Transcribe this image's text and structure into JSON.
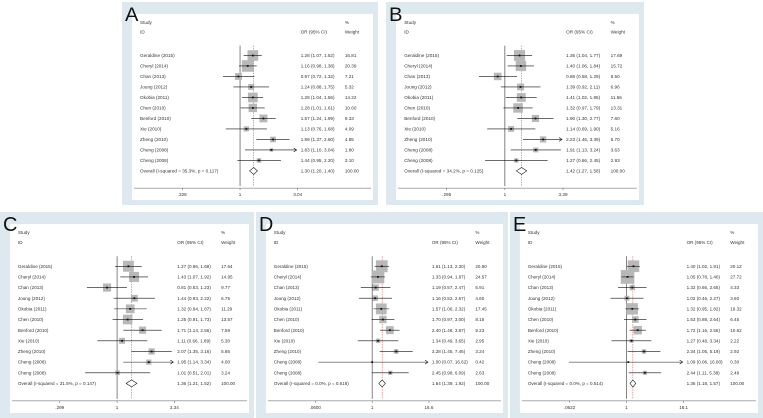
{
  "headers": {
    "study": "Study",
    "id": "ID",
    "or": "OR (95% CI)",
    "pct": "%",
    "weight": "Weight"
  },
  "colors": {
    "panel_bg": "#dde9ee",
    "box": "#b8b8b8",
    "line": "#111111",
    "null_line": "#333333",
    "overall_line": "#d04040"
  },
  "chart_data": [
    {
      "type": "forest",
      "panel": "A",
      "axis_ticks": [
        ".328",
        "1",
        "3.04"
      ],
      "xlim": [
        0.328,
        3.04
      ],
      "scale": "log",
      "overall": {
        "label": "Overall  (I-squared = 35.3%, p = 0.117)",
        "or": 1.3,
        "lo": 1.2,
        "hi": 1.4,
        "or_ci": "1.30 (1.20, 1.40)",
        "weight": "100.00"
      },
      "studies": [
        {
          "name": "Geraldine (2015)",
          "or": 1.28,
          "lo": 1.07,
          "hi": 1.52,
          "or_ci": "1.28 (1.07, 1.52)",
          "weight": "16.81"
        },
        {
          "name": "Cheryl (2014)",
          "or": 1.16,
          "lo": 0.98,
          "hi": 1.38,
          "or_ci": "1.16 (0.98, 1.38)",
          "weight": "20.39"
        },
        {
          "name": "Chan (2013)",
          "or": 0.97,
          "lo": 0.72,
          "hi": 1.32,
          "or_ci": "0.97 (0.72, 1.32)",
          "weight": "7.21"
        },
        {
          "name": "Joung (2012)",
          "or": 1.24,
          "lo": 0.88,
          "hi": 1.75,
          "or_ci": "1.24 (0.88, 1.75)",
          "weight": "5.32"
        },
        {
          "name": "Okobia (2011)",
          "or": 1.28,
          "lo": 1.04,
          "hi": 1.56,
          "or_ci": "1.28 (1.04, 1.56)",
          "weight": "14.22"
        },
        {
          "name": "Chen (2010)",
          "or": 1.28,
          "lo": 1.01,
          "hi": 1.61,
          "or_ci": "1.28 (1.01, 1.61)",
          "weight": "10.60"
        },
        {
          "name": "Benford (2010)",
          "or": 1.57,
          "lo": 1.24,
          "hi": 1.99,
          "or_ci": "1.57 (1.24, 1.99)",
          "weight": "9.33"
        },
        {
          "name": "Xie (2010)",
          "or": 1.13,
          "lo": 0.76,
          "hi": 1.68,
          "or_ci": "1.13 (0.76, 1.68)",
          "weight": "4.09"
        },
        {
          "name": "Zheng (2010)",
          "or": 1.89,
          "lo": 1.37,
          "hi": 2.6,
          "or_ci": "1.89 (1.37, 2.60)",
          "weight": "4.85"
        },
        {
          "name": "Cheng (2008)",
          "or": 1.83,
          "lo": 1.1,
          "hi": 3.04,
          "or_ci": "1.83 (1.10, 3.04)",
          "weight": "1.80"
        },
        {
          "name": "Cheng (2008)",
          "or": 1.44,
          "lo": 0.95,
          "hi": 2.2,
          "or_ci": "1.44 (0.95, 2.20)",
          "weight": "3.10"
        }
      ]
    },
    {
      "type": "forest",
      "panel": "B",
      "axis_ticks": [
        ".295",
        "1",
        "3.39"
      ],
      "xlim": [
        0.295,
        3.39
      ],
      "scale": "log",
      "overall": {
        "label": "Overall  (I-squared = 34.2%, p = 0.125)",
        "or": 1.42,
        "lo": 1.27,
        "hi": 1.58,
        "or_ci": "1.42 (1.27, 1.58)",
        "weight": "100.00"
      },
      "studies": [
        {
          "name": "Geraldine (2015)",
          "or": 1.36,
          "lo": 1.04,
          "hi": 1.77,
          "or_ci": "1.36 (1.04, 1.77)",
          "weight": "17.69"
        },
        {
          "name": "Cheryl (2014)",
          "or": 1.4,
          "lo": 1.06,
          "hi": 1.84,
          "or_ci": "1.40 (1.06, 1.84)",
          "weight": "15.72"
        },
        {
          "name": "Chan (2013)",
          "or": 0.86,
          "lo": 0.58,
          "hi": 1.29,
          "or_ci": "0.86 (0.58, 1.29)",
          "weight": "8.50"
        },
        {
          "name": "Joung (2012)",
          "or": 1.39,
          "lo": 0.92,
          "hi": 2.11,
          "or_ci": "1.39 (0.92, 2.11)",
          "weight": "6.96"
        },
        {
          "name": "Okobia (2011)",
          "or": 1.41,
          "lo": 1.02,
          "hi": 1.95,
          "or_ci": "1.41 (1.02, 1.95)",
          "weight": "11.56"
        },
        {
          "name": "Chen (2010)",
          "or": 1.32,
          "lo": 0.97,
          "hi": 1.79,
          "or_ci": "1.32 (0.97, 1.79)",
          "weight": "13.31"
        },
        {
          "name": "Benford (2010)",
          "or": 1.9,
          "lo": 1.3,
          "hi": 2.77,
          "or_ci": "1.90 (1.30, 2.77)",
          "weight": "7.60"
        },
        {
          "name": "Xie (2010)",
          "or": 1.14,
          "lo": 0.69,
          "hi": 1.9,
          "or_ci": "1.14 (0.69, 1.90)",
          "weight": "5.16"
        },
        {
          "name": "Zheng (2010)",
          "or": 2.23,
          "lo": 1.46,
          "hi": 3.39,
          "or_ci": "2.23 (1.46, 3.39)",
          "weight": "5.70"
        },
        {
          "name": "Cheng (2008)",
          "or": 1.91,
          "lo": 1.13,
          "hi": 3.24,
          "or_ci": "1.91 (1.13, 3.24)",
          "weight": "3.63"
        },
        {
          "name": "Cheng (2008)",
          "or": 1.27,
          "lo": 0.66,
          "hi": 2.45,
          "or_ci": "1.27 (0.66, 2.45)",
          "weight": "2.93"
        }
      ]
    },
    {
      "type": "forest",
      "panel": "C",
      "axis_ticks": [
        ".299",
        "1",
        "3.34"
      ],
      "xlim": [
        0.299,
        3.34
      ],
      "scale": "log",
      "overall": {
        "label": "Overall  (I-squared = 31.5%, p = 0.147)",
        "or": 1.36,
        "lo": 1.21,
        "hi": 1.52,
        "or_ci": "1.36 (1.21, 1.52)",
        "weight": "100.00"
      },
      "studies": [
        {
          "name": "Geraldine (2015)",
          "or": 1.27,
          "lo": 0.96,
          "hi": 1.68,
          "or_ci": "1.27 (0.96, 1.68)",
          "weight": "17.64"
        },
        {
          "name": "Cheryl (2014)",
          "or": 1.43,
          "lo": 1.07,
          "hi": 1.92,
          "or_ci": "1.43 (1.07, 1.92)",
          "weight": "14.95"
        },
        {
          "name": "Chan (2013)",
          "or": 0.81,
          "lo": 0.53,
          "hi": 1.23,
          "or_ci": "0.81 (0.53, 1.23)",
          "weight": "9.77"
        },
        {
          "name": "Joung (2012)",
          "or": 1.44,
          "lo": 0.93,
          "hi": 2.22,
          "or_ci": "1.44 (0.93, 2.22)",
          "weight": "6.75"
        },
        {
          "name": "Okobia (2011)",
          "or": 1.32,
          "lo": 0.94,
          "hi": 1.87,
          "or_ci": "1.32 (0.94, 1.87)",
          "weight": "11.29"
        },
        {
          "name": "Chen (2010)",
          "or": 1.25,
          "lo": 0.91,
          "hi": 1.73,
          "or_ci": "1.25 (0.91, 1.73)",
          "weight": "13.57"
        },
        {
          "name": "Benford (2010)",
          "or": 1.71,
          "lo": 1.14,
          "hi": 2.56,
          "or_ci": "1.71 (1.14, 2.56)",
          "weight": "7.59"
        },
        {
          "name": "Xie (2010)",
          "or": 1.11,
          "lo": 0.66,
          "hi": 1.89,
          "or_ci": "1.11 (0.66, 1.89)",
          "weight": "5.30"
        },
        {
          "name": "Zheng (2010)",
          "or": 2.07,
          "lo": 1.35,
          "hi": 3.16,
          "or_ci": "2.07 (1.35, 3.16)",
          "weight": "5.86"
        },
        {
          "name": "Cheng (2008)",
          "or": 1.95,
          "lo": 1.14,
          "hi": 3.34,
          "or_ci": "1.95 (1.14, 3.34)",
          "weight": "4.00"
        },
        {
          "name": "Cheng (2008)",
          "or": 1.01,
          "lo": 0.51,
          "hi": 2.01,
          "or_ci": "1.01 (0.51, 2.01)",
          "weight": "3.24"
        }
      ]
    },
    {
      "type": "forest",
      "panel": "D",
      "axis_ticks": [
        ".0600",
        "1",
        "16.6"
      ],
      "xlim": [
        0.06,
        16.6
      ],
      "scale": "log",
      "overall": {
        "label": "Overall  (I-squared = 0.0%, p = 0.618)",
        "or": 1.64,
        "lo": 1.39,
        "hi": 1.92,
        "or_ci": "1.64 (1.39, 1.92)",
        "weight": "100.00"
      },
      "studies": [
        {
          "name": "Geraldine (2015)",
          "or": 1.61,
          "lo": 1.13,
          "hi": 2.3,
          "or_ci": "1.61 (1.13, 2.30)",
          "weight": "20.90"
        },
        {
          "name": "Cheryl (2014)",
          "or": 1.33,
          "lo": 0.94,
          "hi": 1.87,
          "or_ci": "1.33 (0.94, 1.87)",
          "weight": "24.57"
        },
        {
          "name": "Chan (2013)",
          "or": 1.19,
          "lo": 0.57,
          "hi": 2.47,
          "or_ci": "1.19 (0.57, 2.47)",
          "weight": "5.91"
        },
        {
          "name": "Joung (2012)",
          "or": 1.16,
          "lo": 0.52,
          "hi": 2.67,
          "or_ci": "1.16 (0.52, 2.67)",
          "weight": "4.60"
        },
        {
          "name": "Okobia (2011)",
          "or": 1.57,
          "lo": 1.06,
          "hi": 2.32,
          "or_ci": "1.57 (1.06, 2.32)",
          "weight": "17.45"
        },
        {
          "name": "Chen (2010)",
          "or": 1.7,
          "lo": 0.97,
          "hi": 3.0,
          "or_ci": "1.70 (0.97, 3.00)",
          "weight": "8.15"
        },
        {
          "name": "Benford (2010)",
          "or": 2.4,
          "lo": 1.48,
          "hi": 3.87,
          "or_ci": "2.40 (1.48, 3.87)",
          "weight": "9.23"
        },
        {
          "name": "Xie (2010)",
          "or": 1.34,
          "lo": 0.49,
          "hi": 3.65,
          "or_ci": "1.34 (0.49, 3.65)",
          "weight": "2.95"
        },
        {
          "name": "Zheng (2010)",
          "or": 3.28,
          "lo": 1.45,
          "hi": 7.46,
          "or_ci": "3.28 (1.45, 7.46)",
          "weight": "3.24"
        },
        {
          "name": "Cheng (2008)",
          "or": 1.0,
          "lo": 0.07,
          "hi": 16.62,
          "or_ci": "1.00 (0.07, 16.62)",
          "weight": "0.42"
        },
        {
          "name": "Cheng (2008)",
          "or": 2.45,
          "lo": 0.98,
          "hi": 6.09,
          "or_ci": "2.45 (0.98, 6.09)",
          "weight": "2.63"
        }
      ]
    },
    {
      "type": "forest",
      "panel": "E",
      "axis_ticks": [
        ".0622",
        "1",
        "16.1"
      ],
      "xlim": [
        0.0622,
        16.1
      ],
      "scale": "log",
      "overall": {
        "label": "Overall  (I-squared = 0.0%, p = 0.514)",
        "or": 1.36,
        "lo": 1.18,
        "hi": 1.57,
        "or_ci": "1.36 (1.18, 1.57)",
        "weight": "100.00"
      },
      "studies": [
        {
          "name": "Geraldine (2015)",
          "or": 1.4,
          "lo": 1.02,
          "hi": 1.91,
          "or_ci": "1.40 (1.02, 1.91)",
          "weight": "20.12"
        },
        {
          "name": "Cheryl (2014)",
          "or": 1.05,
          "lo": 0.78,
          "hi": 1.4,
          "or_ci": "1.05 (0.78, 1.40)",
          "weight": "27.72"
        },
        {
          "name": "Chan (2013)",
          "or": 1.32,
          "lo": 0.66,
          "hi": 2.65,
          "or_ci": "1.32 (0.66, 2.65)",
          "weight": "4.33"
        },
        {
          "name": "Joung (2012)",
          "or": 1.02,
          "lo": 0.46,
          "hi": 2.27,
          "or_ci": "1.02 (0.46, 2.27)",
          "weight": "3.60"
        },
        {
          "name": "Okobia (2011)",
          "or": 1.32,
          "lo": 0.95,
          "hi": 1.82,
          "or_ci": "1.32 (0.95, 1.82)",
          "weight": "19.32"
        },
        {
          "name": "Chen (2010)",
          "or": 1.53,
          "lo": 0.88,
          "hi": 2.64,
          "or_ci": "1.53 (0.88, 2.64)",
          "weight": "6.45"
        },
        {
          "name": "Benford (2010)",
          "or": 1.72,
          "lo": 1.16,
          "hi": 2.56,
          "or_ci": "1.72 (1.16, 2.56)",
          "weight": "10.62"
        },
        {
          "name": "Xie (2010)",
          "or": 1.27,
          "lo": 0.48,
          "hi": 3.34,
          "or_ci": "1.27 (0.48, 3.34)",
          "weight": "2.22"
        },
        {
          "name": "Zheng (2010)",
          "or": 2.34,
          "lo": 1.05,
          "hi": 5.19,
          "or_ci": "2.34 (1.05, 5.19)",
          "weight": "2.92"
        },
        {
          "name": "Cheng (2008)",
          "or": 1.09,
          "lo": 0.06,
          "hi": 16.0,
          "or_ci": "1.09 (0.06, 16.00)",
          "weight": "0.30"
        },
        {
          "name": "Cheng (2008)",
          "or": 2.44,
          "lo": 1.11,
          "hi": 5.38,
          "or_ci": "2.44 (1.11, 5.38)",
          "weight": "2.48"
        }
      ]
    }
  ]
}
